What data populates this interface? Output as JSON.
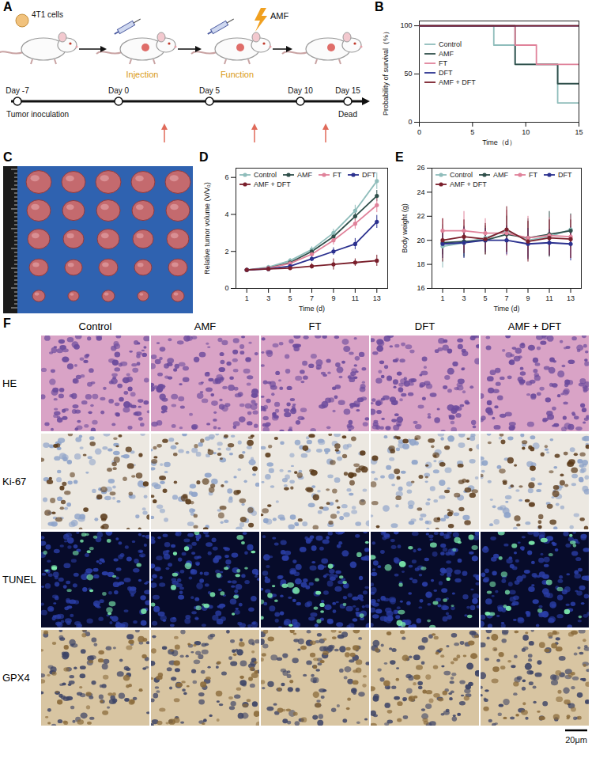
{
  "chart_data": [
    {
      "panel": "B",
      "type": "line",
      "line_style": "step",
      "x_label": "Time（d）",
      "y_label": "Probability of survival（%）",
      "x": [
        0,
        7,
        9,
        11,
        13,
        15
      ],
      "series": [
        {
          "name": "Control",
          "color": "#8fbdbb",
          "values": [
            100,
            80,
            60,
            60,
            20,
            20
          ]
        },
        {
          "name": "AMF",
          "color": "#2f4f4a",
          "values": [
            100,
            100,
            60,
            60,
            40,
            40
          ]
        },
        {
          "name": "FT",
          "color": "#e0829a",
          "values": [
            100,
            100,
            80,
            60,
            60,
            60
          ]
        },
        {
          "name": "DFT",
          "color": "#2b318f",
          "values": [
            100,
            100,
            100,
            100,
            100,
            100
          ]
        },
        {
          "name": "AMF + DFT",
          "color": "#7a1f2b",
          "values": [
            100,
            100,
            100,
            100,
            100,
            100
          ]
        }
      ],
      "xlim": [
        0,
        15
      ],
      "xticks": [
        0,
        5,
        10,
        15
      ],
      "ylim": [
        0,
        105
      ],
      "yticks": [
        0,
        50,
        100
      ],
      "grid": false,
      "legend": "left"
    },
    {
      "panel": "D",
      "type": "line",
      "marker": "circle",
      "x_label": "Time (d)",
      "y_label": "Relative tumor volume (V/V₀)",
      "x": [
        1,
        3,
        5,
        7,
        9,
        11,
        13
      ],
      "series": [
        {
          "name": "Control",
          "color": "#8fbdbb",
          "values": [
            1,
            1.15,
            1.5,
            2.1,
            3.0,
            4.2,
            5.8
          ],
          "errors": [
            0.05,
            0.1,
            0.12,
            0.15,
            0.2,
            0.3,
            0.45
          ]
        },
        {
          "name": "AMF",
          "color": "#2f4f4a",
          "values": [
            1,
            1.1,
            1.4,
            2.0,
            2.8,
            3.9,
            5.0
          ],
          "errors": [
            0.05,
            0.1,
            0.1,
            0.15,
            0.2,
            0.25,
            0.3
          ]
        },
        {
          "name": "FT",
          "color": "#e0829a",
          "values": [
            1,
            1.1,
            1.35,
            1.85,
            2.6,
            3.5,
            4.5
          ],
          "errors": [
            0.05,
            0.1,
            0.12,
            0.15,
            0.25,
            0.3,
            0.4
          ]
        },
        {
          "name": "DFT",
          "color": "#2b318f",
          "values": [
            1,
            1.05,
            1.2,
            1.6,
            2.0,
            2.4,
            3.6
          ],
          "errors": [
            0.05,
            0.08,
            0.1,
            0.15,
            0.2,
            0.3,
            0.35
          ]
        },
        {
          "name": "AMF + DFT",
          "color": "#7a1f2b",
          "values": [
            1,
            1.05,
            1.1,
            1.2,
            1.3,
            1.4,
            1.5
          ],
          "errors": [
            0.05,
            0.05,
            0.1,
            0.15,
            0.3,
            0.2,
            0.3
          ]
        }
      ],
      "xlim": [
        0,
        14
      ],
      "xticks": [
        1,
        3,
        5,
        7,
        9,
        11,
        13
      ],
      "ylim": [
        0,
        6.5
      ],
      "yticks": [
        0,
        2,
        4,
        6
      ],
      "grid": false,
      "legend": "top-left"
    },
    {
      "panel": "E",
      "type": "line",
      "marker": "circle",
      "x_label": "Time (d)",
      "y_label": "Body weight (g)",
      "x": [
        1,
        3,
        5,
        7,
        9,
        11,
        13
      ],
      "series": [
        {
          "name": "Control",
          "color": "#8fbdbb",
          "values": [
            19.5,
            19.8,
            20.2,
            20.8,
            20.0,
            20.3,
            20.9
          ],
          "errors": [
            1.8,
            1.2,
            1.0,
            1.3,
            1.5,
            1.4,
            1.2
          ]
        },
        {
          "name": "AMF",
          "color": "#2f4f4a",
          "values": [
            19.8,
            19.9,
            20.0,
            20.5,
            20.2,
            20.5,
            20.8
          ],
          "errors": [
            1.0,
            1.3,
            1.2,
            1.5,
            1.6,
            1.9,
            1.4
          ]
        },
        {
          "name": "FT",
          "color": "#e0829a",
          "values": [
            20.8,
            20.8,
            20.6,
            20.6,
            20.2,
            20.4,
            20.3
          ],
          "errors": [
            1.0,
            1.6,
            1.2,
            1.9,
            1.8,
            1.5,
            1.8
          ]
        },
        {
          "name": "DFT",
          "color": "#2b318f",
          "values": [
            19.7,
            19.8,
            20.0,
            20.0,
            19.7,
            19.8,
            19.7
          ],
          "errors": [
            1.2,
            1.3,
            1.0,
            1.2,
            1.3,
            1.1,
            1.4
          ]
        },
        {
          "name": "AMF + DFT",
          "color": "#7a1f2b",
          "values": [
            20.0,
            20.3,
            20.1,
            20.9,
            19.9,
            20.2,
            20.1
          ],
          "errors": [
            1.8,
            1.4,
            1.3,
            1.9,
            1.7,
            1.5,
            1.6
          ]
        }
      ],
      "xlim": [
        0,
        14
      ],
      "xticks": [
        1,
        3,
        5,
        7,
        9,
        11,
        13
      ],
      "ylim": [
        16,
        26
      ],
      "yticks": [
        16,
        18,
        20,
        22,
        24,
        26
      ],
      "grid": false,
      "legend": "top-left"
    }
  ],
  "schematic": {
    "panel": "A",
    "cells_label": "4T1 cells",
    "injection_label": "Injection",
    "field_label": "AMF",
    "function_label": "Function",
    "timeline": {
      "days": [
        "Day -7",
        "Day 0",
        "Day 5",
        "Day 10",
        "Day 15"
      ],
      "start_label": "Tumor inoculation",
      "end_label": "Dead"
    }
  },
  "photo": {
    "panel": "C"
  },
  "histology": {
    "panel": "F",
    "columns": [
      "Control",
      "AMF",
      "FT",
      "DFT",
      "AMF + DFT"
    ],
    "rows": [
      "HE",
      "Ki-67",
      "TUNEL",
      "GPX4"
    ],
    "scale_bar": "20μm"
  }
}
